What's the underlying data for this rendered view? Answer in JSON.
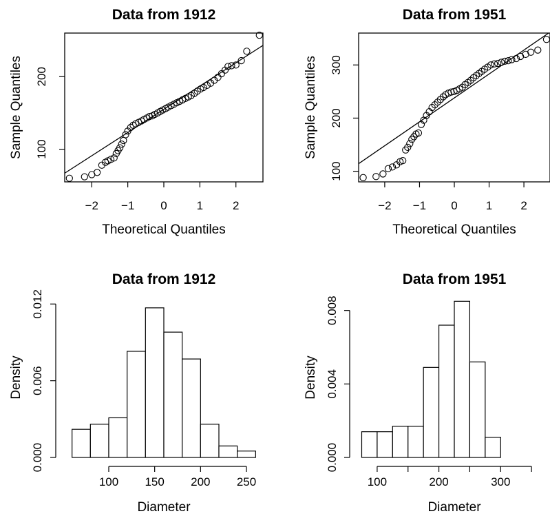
{
  "chart_data": [
    {
      "type": "scatter",
      "subtype": "qq-plot",
      "title": "Data from 1912",
      "xlabel": "Theoretical Quantiles",
      "ylabel": "Sample Quantiles",
      "xlim": [
        -2.75,
        2.75
      ],
      "ylim": [
        55,
        260
      ],
      "xticks": [
        -2,
        -1,
        0,
        1,
        2
      ],
      "yticks": [
        100,
        200
      ],
      "grid": false,
      "reference_line": {
        "intercept": 155.0,
        "slope": 32.0
      },
      "points": [
        [
          -2.62,
          60
        ],
        [
          -2.2,
          62
        ],
        [
          -2.0,
          65
        ],
        [
          -1.85,
          68
        ],
        [
          -1.72,
          78
        ],
        [
          -1.62,
          82
        ],
        [
          -1.55,
          84
        ],
        [
          -1.47,
          86
        ],
        [
          -1.38,
          88
        ],
        [
          -1.32,
          94
        ],
        [
          -1.27,
          98
        ],
        [
          -1.22,
          102
        ],
        [
          -1.17,
          107
        ],
        [
          -1.12,
          112
        ],
        [
          -1.06,
          120
        ],
        [
          -1.0,
          125
        ],
        [
          -0.92,
          130
        ],
        [
          -0.85,
          133
        ],
        [
          -0.78,
          135
        ],
        [
          -0.7,
          137
        ],
        [
          -0.62,
          139
        ],
        [
          -0.55,
          141
        ],
        [
          -0.47,
          143
        ],
        [
          -0.4,
          145
        ],
        [
          -0.32,
          146
        ],
        [
          -0.25,
          148
        ],
        [
          -0.17,
          150
        ],
        [
          -0.1,
          152
        ],
        [
          -0.03,
          154
        ],
        [
          0.05,
          156
        ],
        [
          0.12,
          158
        ],
        [
          0.2,
          160
        ],
        [
          0.28,
          162
        ],
        [
          0.36,
          164
        ],
        [
          0.44,
          166
        ],
        [
          0.52,
          168
        ],
        [
          0.6,
          170
        ],
        [
          0.68,
          172
        ],
        [
          0.76,
          174
        ],
        [
          0.85,
          177
        ],
        [
          0.93,
          180
        ],
        [
          1.02,
          183
        ],
        [
          1.1,
          185
        ],
        [
          1.2,
          188
        ],
        [
          1.3,
          191
        ],
        [
          1.4,
          195
        ],
        [
          1.5,
          199
        ],
        [
          1.6,
          204
        ],
        [
          1.7,
          209
        ],
        [
          1.78,
          214
        ],
        [
          1.88,
          215
        ],
        [
          2.0,
          216
        ],
        [
          2.15,
          222
        ],
        [
          2.3,
          235
        ],
        [
          2.65,
          257
        ]
      ]
    },
    {
      "type": "scatter",
      "subtype": "qq-plot",
      "title": "Data from 1951",
      "xlabel": "Theoretical Quantiles",
      "ylabel": "Sample Quantiles",
      "xlim": [
        -2.75,
        2.75
      ],
      "ylim": [
        80,
        360
      ],
      "xticks": [
        -2,
        -1,
        0,
        1,
        2
      ],
      "yticks": [
        100,
        200,
        300
      ],
      "grid": false,
      "reference_line": {
        "intercept": 238.0,
        "slope": 45.0
      },
      "points": [
        [
          -2.62,
          88
        ],
        [
          -2.25,
          90
        ],
        [
          -2.05,
          95
        ],
        [
          -1.9,
          105
        ],
        [
          -1.78,
          108
        ],
        [
          -1.66,
          112
        ],
        [
          -1.56,
          118
        ],
        [
          -1.48,
          120
        ],
        [
          -1.4,
          140
        ],
        [
          -1.34,
          145
        ],
        [
          -1.28,
          152
        ],
        [
          -1.22,
          160
        ],
        [
          -1.16,
          165
        ],
        [
          -1.1,
          170
        ],
        [
          -1.03,
          172
        ],
        [
          -0.95,
          188
        ],
        [
          -0.88,
          196
        ],
        [
          -0.8,
          205
        ],
        [
          -0.72,
          212
        ],
        [
          -0.64,
          220
        ],
        [
          -0.56,
          225
        ],
        [
          -0.48,
          230
        ],
        [
          -0.4,
          235
        ],
        [
          -0.32,
          240
        ],
        [
          -0.25,
          244
        ],
        [
          -0.17,
          247
        ],
        [
          -0.09,
          249
        ],
        [
          -0.01,
          250
        ],
        [
          0.07,
          252
        ],
        [
          0.15,
          255
        ],
        [
          0.23,
          258
        ],
        [
          0.31,
          263
        ],
        [
          0.39,
          267
        ],
        [
          0.47,
          271
        ],
        [
          0.55,
          276
        ],
        [
          0.63,
          280
        ],
        [
          0.71,
          284
        ],
        [
          0.79,
          288
        ],
        [
          0.87,
          292
        ],
        [
          0.96,
          296
        ],
        [
          1.05,
          300
        ],
        [
          1.15,
          302
        ],
        [
          1.25,
          303
        ],
        [
          1.35,
          305
        ],
        [
          1.45,
          307
        ],
        [
          1.55,
          308
        ],
        [
          1.65,
          310
        ],
        [
          1.78,
          312
        ],
        [
          1.9,
          316
        ],
        [
          2.05,
          320
        ],
        [
          2.2,
          324
        ],
        [
          2.4,
          328
        ],
        [
          2.65,
          348
        ]
      ]
    },
    {
      "type": "bar",
      "subtype": "histogram",
      "title": "Data from 1912",
      "xlabel": "Diameter",
      "ylabel": "Density",
      "xlim": [
        52,
        268
      ],
      "ylim": [
        0,
        0.0125
      ],
      "xticks": [
        100,
        150,
        200,
        250
      ],
      "yticks": [
        0.0,
        0.006,
        0.012
      ],
      "ytick_labels": [
        "0.000",
        "0.006",
        "0.012"
      ],
      "grid": false,
      "bins": [
        {
          "from": 60,
          "to": 80,
          "density": 0.0022
        },
        {
          "from": 80,
          "to": 100,
          "density": 0.0026
        },
        {
          "from": 100,
          "to": 120,
          "density": 0.0031
        },
        {
          "from": 120,
          "to": 140,
          "density": 0.0083
        },
        {
          "from": 140,
          "to": 160,
          "density": 0.0117
        },
        {
          "from": 160,
          "to": 180,
          "density": 0.0098
        },
        {
          "from": 180,
          "to": 200,
          "density": 0.0077
        },
        {
          "from": 200,
          "to": 220,
          "density": 0.0026
        },
        {
          "from": 220,
          "to": 240,
          "density": 0.0009
        },
        {
          "from": 240,
          "to": 260,
          "density": 0.0005
        }
      ]
    },
    {
      "type": "bar",
      "subtype": "histogram",
      "title": "Data from 1951",
      "xlabel": "Diameter",
      "ylabel": "Density",
      "xlim": [
        70,
        380
      ],
      "ylim": [
        0,
        0.0087
      ],
      "xticks": [
        100,
        150,
        200,
        250,
        300,
        350
      ],
      "xtick_labels": [
        "100",
        "",
        "200",
        "",
        "300",
        ""
      ],
      "yticks": [
        0.0,
        0.004,
        0.008
      ],
      "ytick_labels": [
        "0.000",
        "0.004",
        "0.008"
      ],
      "grid": false,
      "bins": [
        {
          "from": 75,
          "to": 100,
          "density": 0.0014
        },
        {
          "from": 100,
          "to": 125,
          "density": 0.0014
        },
        {
          "from": 125,
          "to": 150,
          "density": 0.0017
        },
        {
          "from": 150,
          "to": 175,
          "density": 0.0017
        },
        {
          "from": 175,
          "to": 200,
          "density": 0.0049
        },
        {
          "from": 200,
          "to": 225,
          "density": 0.0072
        },
        {
          "from": 225,
          "to": 250,
          "density": 0.0085
        },
        {
          "from": 250,
          "to": 275,
          "density": 0.0052
        },
        {
          "from": 275,
          "to": 300,
          "density": 0.0011
        }
      ]
    }
  ]
}
